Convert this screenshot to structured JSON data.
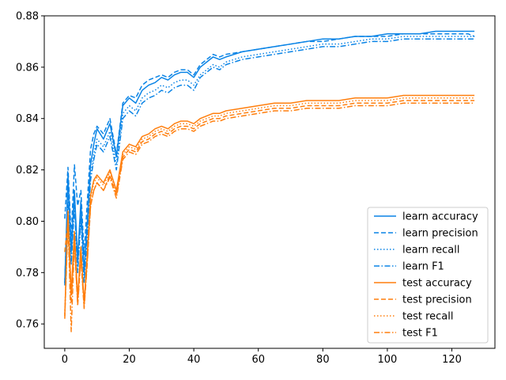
{
  "chart_data": {
    "type": "line",
    "title": "",
    "xlabel": "",
    "ylabel": "",
    "xlim": [
      -6.35,
      133.35
    ],
    "ylim": [
      0.7505,
      0.88
    ],
    "x_ticks": [
      0,
      20,
      40,
      60,
      80,
      100,
      120
    ],
    "y_ticks": [
      0.76,
      0.78,
      0.8,
      0.82,
      0.84,
      0.86,
      0.88
    ],
    "x_tick_labels": [
      "0",
      "20",
      "40",
      "60",
      "80",
      "100",
      "120"
    ],
    "y_tick_labels": [
      "0.76",
      "0.78",
      "0.80",
      "0.82",
      "0.84",
      "0.86",
      "0.88"
    ],
    "grid": false,
    "legend_position": "lower right",
    "x": [
      0,
      1,
      2,
      3,
      4,
      5,
      6,
      7,
      8,
      9,
      10,
      12,
      14,
      16,
      18,
      20,
      22,
      24,
      26,
      28,
      30,
      32,
      34,
      36,
      38,
      40,
      42,
      44,
      46,
      48,
      50,
      55,
      60,
      65,
      70,
      75,
      80,
      85,
      90,
      95,
      100,
      105,
      110,
      115,
      120,
      125,
      127
    ],
    "series": [
      {
        "name": "learn accuracy",
        "color": "#1f77b4",
        "display_color": "#0a84e6",
        "dash": "solid",
        "values": [
          0.775,
          0.818,
          0.788,
          0.812,
          0.785,
          0.808,
          0.78,
          0.8,
          0.822,
          0.83,
          0.836,
          0.832,
          0.838,
          0.825,
          0.845,
          0.848,
          0.846,
          0.851,
          0.853,
          0.854,
          0.856,
          0.855,
          0.857,
          0.858,
          0.858,
          0.856,
          0.86,
          0.862,
          0.864,
          0.863,
          0.864,
          0.866,
          0.867,
          0.868,
          0.869,
          0.87,
          0.871,
          0.871,
          0.872,
          0.872,
          0.873,
          0.873,
          0.873,
          0.874,
          0.874,
          0.874,
          0.874
        ]
      },
      {
        "name": "learn precision",
        "color": "#1f77b4",
        "display_color": "#0a84e6",
        "dash": "dashed",
        "values": [
          0.801,
          0.821,
          0.794,
          0.822,
          0.806,
          0.812,
          0.787,
          0.808,
          0.828,
          0.834,
          0.837,
          0.834,
          0.84,
          0.826,
          0.846,
          0.849,
          0.848,
          0.853,
          0.855,
          0.856,
          0.857,
          0.856,
          0.858,
          0.859,
          0.859,
          0.857,
          0.861,
          0.863,
          0.865,
          0.864,
          0.865,
          0.866,
          0.867,
          0.868,
          0.869,
          0.87,
          0.87,
          0.871,
          0.872,
          0.872,
          0.872,
          0.873,
          0.873,
          0.873,
          0.873,
          0.873,
          0.872
        ]
      },
      {
        "name": "learn recall",
        "color": "#1f77b4",
        "display_color": "#0a84e6",
        "dash": "dotted",
        "values": [
          0.776,
          0.812,
          0.785,
          0.808,
          0.782,
          0.803,
          0.778,
          0.797,
          0.818,
          0.826,
          0.832,
          0.829,
          0.835,
          0.822,
          0.842,
          0.845,
          0.843,
          0.848,
          0.85,
          0.851,
          0.853,
          0.852,
          0.854,
          0.855,
          0.855,
          0.853,
          0.857,
          0.859,
          0.861,
          0.86,
          0.862,
          0.864,
          0.865,
          0.866,
          0.867,
          0.868,
          0.869,
          0.869,
          0.87,
          0.871,
          0.871,
          0.872,
          0.872,
          0.872,
          0.872,
          0.872,
          0.872
        ]
      },
      {
        "name": "learn F1",
        "color": "#1f77b4",
        "display_color": "#0a84e6",
        "dash": "dashdot",
        "values": [
          0.776,
          0.81,
          0.783,
          0.806,
          0.78,
          0.801,
          0.776,
          0.795,
          0.816,
          0.824,
          0.83,
          0.827,
          0.833,
          0.82,
          0.84,
          0.843,
          0.841,
          0.846,
          0.848,
          0.849,
          0.851,
          0.85,
          0.852,
          0.853,
          0.853,
          0.851,
          0.856,
          0.858,
          0.86,
          0.859,
          0.861,
          0.863,
          0.864,
          0.865,
          0.866,
          0.867,
          0.868,
          0.868,
          0.869,
          0.87,
          0.87,
          0.871,
          0.871,
          0.871,
          0.871,
          0.871,
          0.871
        ]
      },
      {
        "name": "test accuracy",
        "color": "#ff7f0e",
        "display_color": "#ff7f0e",
        "dash": "solid",
        "values": [
          0.763,
          0.804,
          0.772,
          0.796,
          0.77,
          0.79,
          0.768,
          0.788,
          0.81,
          0.816,
          0.818,
          0.815,
          0.82,
          0.812,
          0.827,
          0.83,
          0.829,
          0.833,
          0.834,
          0.836,
          0.837,
          0.836,
          0.838,
          0.839,
          0.839,
          0.838,
          0.84,
          0.841,
          0.842,
          0.842,
          0.843,
          0.844,
          0.845,
          0.846,
          0.846,
          0.847,
          0.847,
          0.847,
          0.848,
          0.848,
          0.848,
          0.849,
          0.849,
          0.849,
          0.849,
          0.849,
          0.849
        ]
      },
      {
        "name": "test precision",
        "color": "#ff7f0e",
        "display_color": "#ff7f0e",
        "dash": "dashed",
        "values": [
          0.788,
          0.8,
          0.768,
          0.792,
          0.768,
          0.786,
          0.767,
          0.785,
          0.806,
          0.812,
          0.815,
          0.812,
          0.818,
          0.81,
          0.825,
          0.828,
          0.827,
          0.831,
          0.832,
          0.834,
          0.835,
          0.834,
          0.836,
          0.837,
          0.837,
          0.836,
          0.838,
          0.839,
          0.84,
          0.84,
          0.841,
          0.842,
          0.843,
          0.844,
          0.844,
          0.845,
          0.845,
          0.845,
          0.846,
          0.846,
          0.846,
          0.847,
          0.847,
          0.847,
          0.847,
          0.847,
          0.847
        ]
      },
      {
        "name": "test recall",
        "color": "#ff7f0e",
        "display_color": "#ff7f0e",
        "dash": "dotted",
        "values": [
          0.764,
          0.803,
          0.771,
          0.795,
          0.769,
          0.789,
          0.767,
          0.787,
          0.809,
          0.815,
          0.817,
          0.814,
          0.819,
          0.811,
          0.826,
          0.829,
          0.828,
          0.832,
          0.833,
          0.835,
          0.836,
          0.835,
          0.837,
          0.838,
          0.838,
          0.837,
          0.839,
          0.84,
          0.841,
          0.841,
          0.842,
          0.843,
          0.844,
          0.845,
          0.845,
          0.846,
          0.846,
          0.846,
          0.847,
          0.847,
          0.847,
          0.848,
          0.848,
          0.848,
          0.848,
          0.848,
          0.848
        ]
      },
      {
        "name": "test F1",
        "color": "#ff7f0e",
        "display_color": "#ff7f0e",
        "dash": "dashdot",
        "values": [
          0.762,
          0.8,
          0.757,
          0.792,
          0.767,
          0.786,
          0.766,
          0.784,
          0.806,
          0.812,
          0.815,
          0.812,
          0.817,
          0.809,
          0.824,
          0.827,
          0.826,
          0.83,
          0.831,
          0.833,
          0.834,
          0.833,
          0.835,
          0.836,
          0.836,
          0.835,
          0.837,
          0.838,
          0.839,
          0.839,
          0.84,
          0.841,
          0.842,
          0.843,
          0.843,
          0.844,
          0.844,
          0.844,
          0.845,
          0.845,
          0.845,
          0.846,
          0.846,
          0.846,
          0.846,
          0.846,
          0.846
        ]
      }
    ]
  }
}
